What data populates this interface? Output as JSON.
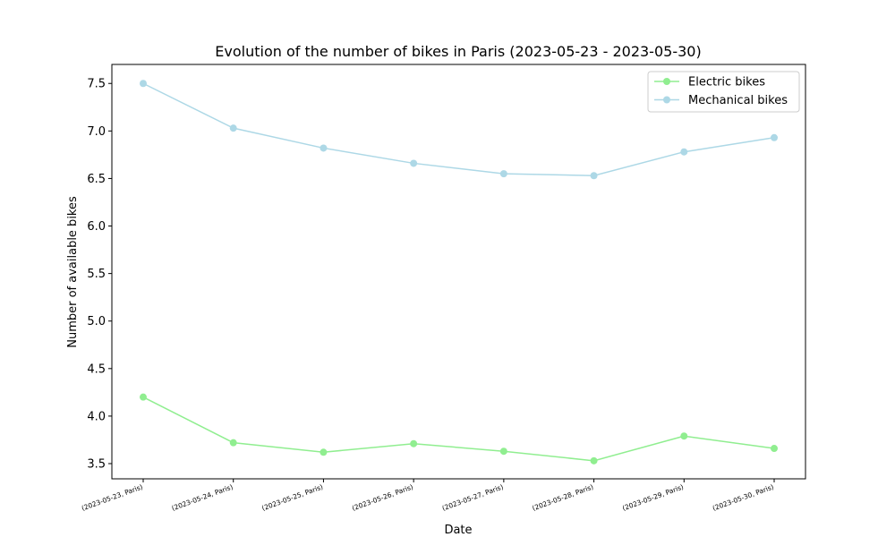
{
  "chart_data": {
    "type": "line",
    "title": "Evolution of the number of bikes in Paris (2023-05-23 - 2023-05-30)",
    "xlabel": "Date",
    "ylabel": "Number of available bikes",
    "categories": [
      "(2023-05-23, Paris)",
      "(2023-05-24, Paris)",
      "(2023-05-25, Paris)",
      "(2023-05-26, Paris)",
      "(2023-05-27, Paris)",
      "(2023-05-28, Paris)",
      "(2023-05-29, Paris)",
      "(2023-05-30, Paris)"
    ],
    "series": [
      {
        "name": "Electric bikes",
        "color": "#90ee90",
        "values": [
          4.2,
          3.72,
          3.62,
          3.71,
          3.63,
          3.53,
          3.79,
          3.66
        ]
      },
      {
        "name": "Mechanical bikes",
        "color": "#add8e6",
        "values": [
          7.5,
          7.03,
          6.82,
          6.66,
          6.55,
          6.53,
          6.78,
          6.93
        ]
      }
    ],
    "ylim": [
      3.34,
      7.7
    ],
    "yticks": [
      "3.5",
      "4.0",
      "4.5",
      "5.0",
      "5.5",
      "6.0",
      "6.5",
      "7.0",
      "7.5"
    ],
    "grid": false,
    "legend": "top-right"
  }
}
